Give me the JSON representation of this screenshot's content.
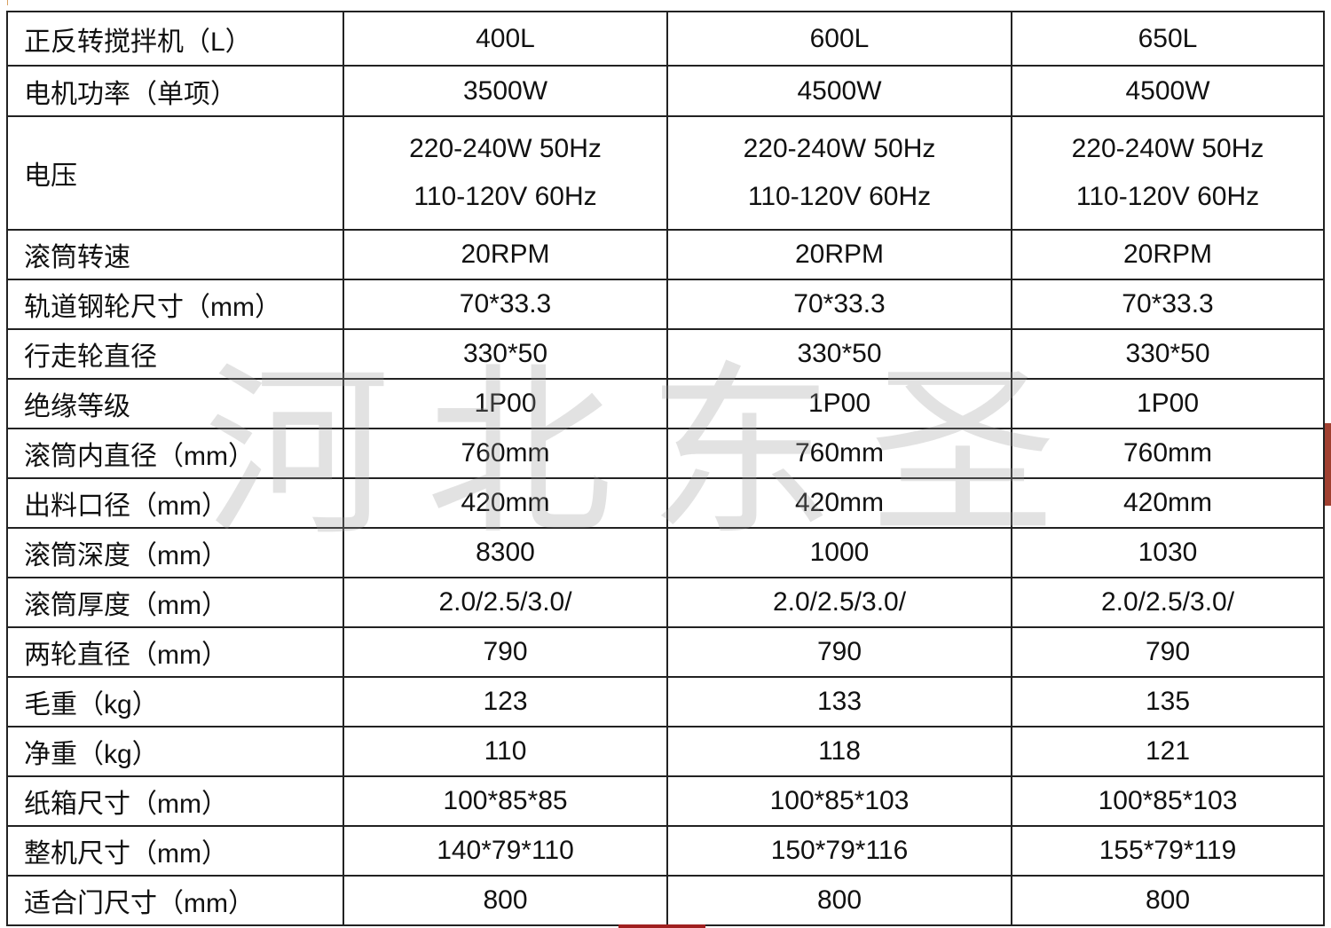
{
  "table": {
    "header": {
      "label": "正反转搅拌机（L）",
      "values": [
        "400L",
        "600L",
        "650L"
      ]
    },
    "rows": [
      {
        "label": "电机功率（单项）",
        "values": [
          "3500W",
          "4500W",
          "4500W"
        ]
      },
      {
        "label": "电压",
        "values": [
          [
            "220-240W 50Hz",
            "110-120V 60Hz"
          ],
          [
            "220-240W 50Hz",
            "110-120V 60Hz"
          ],
          [
            "220-240W 50Hz",
            "110-120V 60Hz"
          ]
        ]
      },
      {
        "label": "滚筒转速",
        "values": [
          "20RPM",
          "20RPM",
          "20RPM"
        ]
      },
      {
        "label": "轨道钢轮尺寸（mm）",
        "values": [
          "70*33.3",
          "70*33.3",
          "70*33.3"
        ]
      },
      {
        "label": "行走轮直径",
        "values": [
          "330*50",
          "330*50",
          "330*50"
        ]
      },
      {
        "label": "绝缘等级",
        "values": [
          "1P00",
          "1P00",
          "1P00"
        ]
      },
      {
        "label": "滚筒内直径（mm）",
        "values": [
          "760mm",
          "760mm",
          "760mm"
        ]
      },
      {
        "label": "出料口径（mm）",
        "values": [
          "420mm",
          "420mm",
          "420mm"
        ]
      },
      {
        "label": "滚筒深度（mm）",
        "values": [
          "8300",
          "1000",
          "1030"
        ]
      },
      {
        "label": "滚筒厚度（mm）",
        "values": [
          "2.0/2.5/3.0/",
          "2.0/2.5/3.0/",
          "2.0/2.5/3.0/"
        ]
      },
      {
        "label": "两轮直径（mm）",
        "values": [
          "790",
          "790",
          "790"
        ]
      },
      {
        "label": "毛重（kg）",
        "values": [
          "123",
          "133",
          "135"
        ]
      },
      {
        "label": "净重（kg）",
        "values": [
          "110",
          "118",
          "121"
        ]
      },
      {
        "label": "纸箱尺寸（mm）",
        "values": [
          "100*85*85",
          "100*85*103",
          "100*85*103"
        ]
      },
      {
        "label": "整机尺寸（mm）",
        "values": [
          "140*79*110",
          "150*79*116",
          "155*79*119"
        ]
      },
      {
        "label": "适合门尺寸（mm）",
        "values": [
          "800",
          "800",
          "800"
        ]
      }
    ]
  },
  "watermark": "河北东圣"
}
